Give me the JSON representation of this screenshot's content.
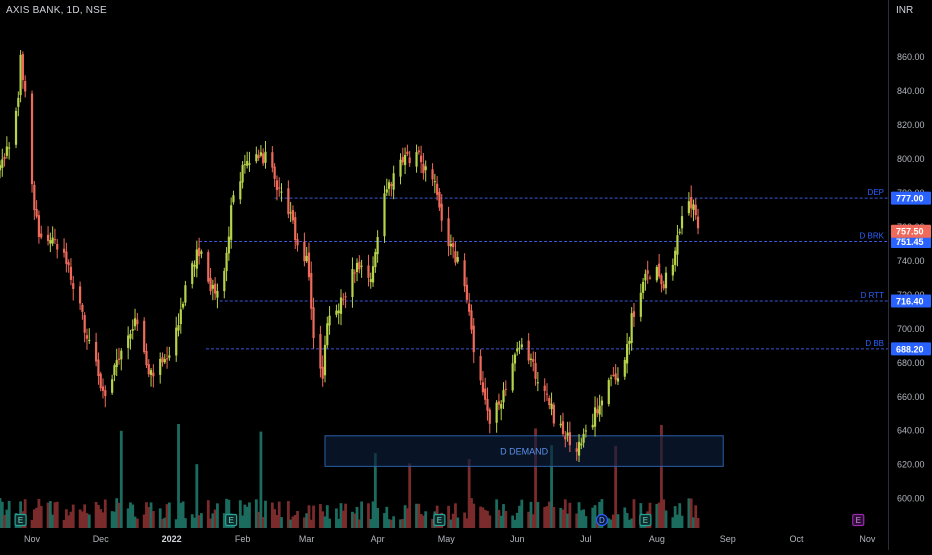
{
  "header": {
    "symbol_title": "AXIS BANK, 1D, NSE",
    "currency": "INR"
  },
  "colors": {
    "background": "#000000",
    "up_candle": "#b7d24b",
    "down_candle": "#ef6a5a",
    "volume_up": "#1b6b5e",
    "volume_down": "#7a2b2b",
    "level_line": "#3b56d6",
    "level_label": "#2962ff",
    "axis_text": "#b2b5be",
    "zone_fill": "#0c1f3a",
    "zone_border": "#2c5ea8",
    "zone_text": "#5b8fe8",
    "current_price_badge": "#ef6a5a",
    "event_e_badge": "#26a69a",
    "event_d_badge": "#2962ff",
    "event_e_future_badge": "#9c27b0"
  },
  "chart_data": {
    "type": "candlestick",
    "symbol": "AXIS BANK",
    "timeframe": "1D",
    "exchange": "NSE",
    "y_axis": {
      "unit": "INR",
      "ylim": [
        588,
        876
      ],
      "ticks": [
        600,
        620,
        640,
        660,
        680,
        700,
        720,
        740,
        760,
        780,
        800,
        820,
        840,
        860
      ],
      "tick_labels": [
        "600.00",
        "620.00",
        "640.00",
        "660.00",
        "680.00",
        "700.00",
        "720.00",
        "740.00",
        "760.00",
        "780.00",
        "800.00",
        "820.00",
        "840.00",
        "860.00"
      ]
    },
    "x_axis": {
      "range": [
        "2021-10-18",
        "2022-11-10"
      ],
      "ticks": [
        {
          "date": "2021-11-01",
          "label": "Nov"
        },
        {
          "date": "2021-12-01",
          "label": "Dec"
        },
        {
          "date": "2022-01-01",
          "label": "2022"
        },
        {
          "date": "2022-02-01",
          "label": "Feb"
        },
        {
          "date": "2022-03-01",
          "label": "Mar"
        },
        {
          "date": "2022-04-01",
          "label": "Apr"
        },
        {
          "date": "2022-05-01",
          "label": "May"
        },
        {
          "date": "2022-06-01",
          "label": "Jun"
        },
        {
          "date": "2022-07-01",
          "label": "Jul"
        },
        {
          "date": "2022-08-01",
          "label": "Aug"
        },
        {
          "date": "2022-09-01",
          "label": "Sep"
        },
        {
          "date": "2022-10-01",
          "label": "Oct"
        },
        {
          "date": "2022-11-01",
          "label": "Nov"
        }
      ]
    },
    "price_path": [
      [
        "2021-10-18",
        795
      ],
      [
        "2021-10-22",
        808
      ],
      [
        "2021-10-26",
        836
      ],
      [
        "2021-10-27",
        858
      ],
      [
        "2021-10-29",
        842
      ],
      [
        "2021-11-02",
        772
      ],
      [
        "2021-11-04",
        754
      ],
      [
        "2021-11-10",
        752
      ],
      [
        "2021-11-16",
        738
      ],
      [
        "2021-11-22",
        712
      ],
      [
        "2021-11-26",
        690
      ],
      [
        "2021-11-30",
        672
      ],
      [
        "2021-12-03",
        661
      ],
      [
        "2021-12-08",
        678
      ],
      [
        "2021-12-13",
        698
      ],
      [
        "2021-12-17",
        705
      ],
      [
        "2021-12-22",
        672
      ],
      [
        "2021-12-27",
        678
      ],
      [
        "2021-12-31",
        680
      ],
      [
        "2022-01-05",
        712
      ],
      [
        "2022-01-10",
        738
      ],
      [
        "2022-01-14",
        748
      ],
      [
        "2022-01-18",
        722
      ],
      [
        "2022-01-22",
        722
      ],
      [
        "2022-01-25",
        742
      ],
      [
        "2022-01-28",
        782
      ],
      [
        "2022-02-02",
        795
      ],
      [
        "2022-02-04",
        798
      ],
      [
        "2022-02-08",
        805
      ],
      [
        "2022-02-11",
        800
      ],
      [
        "2022-02-15",
        790
      ],
      [
        "2022-02-18",
        778
      ],
      [
        "2022-02-22",
        765
      ],
      [
        "2022-02-25",
        748
      ],
      [
        "2022-03-01",
        740
      ],
      [
        "2022-03-04",
        698
      ],
      [
        "2022-03-08",
        672
      ],
      [
        "2022-03-10",
        702
      ],
      [
        "2022-03-15",
        712
      ],
      [
        "2022-03-18",
        722
      ],
      [
        "2022-03-23",
        740
      ],
      [
        "2022-03-28",
        728
      ],
      [
        "2022-03-31",
        745
      ],
      [
        "2022-04-04",
        782
      ],
      [
        "2022-04-08",
        790
      ],
      [
        "2022-04-12",
        798
      ],
      [
        "2022-04-15",
        802
      ],
      [
        "2022-04-18",
        808
      ],
      [
        "2022-04-21",
        796
      ],
      [
        "2022-04-25",
        790
      ],
      [
        "2022-04-28",
        770
      ],
      [
        "2022-05-02",
        752
      ],
      [
        "2022-05-05",
        742
      ],
      [
        "2022-05-09",
        728
      ],
      [
        "2022-05-11",
        710
      ],
      [
        "2022-05-13",
        682
      ],
      [
        "2022-05-17",
        662
      ],
      [
        "2022-05-20",
        645
      ],
      [
        "2022-05-24",
        655
      ],
      [
        "2022-05-27",
        668
      ],
      [
        "2022-05-31",
        682
      ],
      [
        "2022-06-03",
        690
      ],
      [
        "2022-06-07",
        682
      ],
      [
        "2022-06-10",
        670
      ],
      [
        "2022-06-14",
        662
      ],
      [
        "2022-06-17",
        648
      ],
      [
        "2022-06-21",
        640
      ],
      [
        "2022-06-24",
        632
      ],
      [
        "2022-06-28",
        630
      ],
      [
        "2022-07-01",
        636
      ],
      [
        "2022-07-05",
        650
      ],
      [
        "2022-07-08",
        662
      ],
      [
        "2022-07-12",
        672
      ],
      [
        "2022-07-14",
        666
      ],
      [
        "2022-07-18",
        682
      ],
      [
        "2022-07-21",
        705
      ],
      [
        "2022-07-25",
        722
      ],
      [
        "2022-07-28",
        732
      ],
      [
        "2022-08-01",
        736
      ],
      [
        "2022-08-04",
        728
      ],
      [
        "2022-08-08",
        742
      ],
      [
        "2022-08-10",
        752
      ],
      [
        "2022-08-12",
        766
      ],
      [
        "2022-08-16",
        773
      ],
      [
        "2022-08-18",
        770
      ],
      [
        "2022-08-19",
        757.5
      ]
    ],
    "levels": [
      {
        "label": "DEP",
        "price": 777.0,
        "price_label": "777.00",
        "start": "2022-02-15"
      },
      {
        "label": "D BRK",
        "price": 751.45,
        "price_label": "751.45",
        "start": "2022-01-13"
      },
      {
        "label": "D RTT",
        "price": 716.4,
        "price_label": "716.40",
        "start": "2022-01-22"
      },
      {
        "label": "D BB",
        "price": 688.2,
        "price_label": "688.20",
        "start": "2022-01-16"
      }
    ],
    "current_price": {
      "value": 757.5,
      "label": "757.50"
    },
    "zones": [
      {
        "label": "D DEMAND",
        "start": "2022-03-09",
        "end": "2022-08-30",
        "top": 637,
        "bottom": 619
      }
    ],
    "events": [
      {
        "type": "E",
        "date": "2021-10-27"
      },
      {
        "type": "E",
        "date": "2022-01-27"
      },
      {
        "type": "E",
        "date": "2022-04-28"
      },
      {
        "type": "D",
        "date": "2022-07-08"
      },
      {
        "type": "E",
        "date": "2022-07-27"
      },
      {
        "type": "E",
        "date": "2022-10-28"
      }
    ],
    "volume": {
      "shown": true,
      "scale": "relative"
    },
    "grid": false,
    "legend": "none"
  }
}
